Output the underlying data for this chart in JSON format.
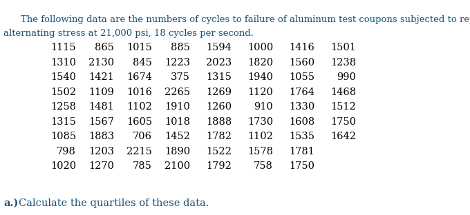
{
  "title_line1": "The following data are the numbers of cycles to failure of aluminum test coupons subjected to repeated",
  "title_line2": "alternating stress at 21,000 psi, 18 cycles per second.",
  "title_color": "#1a5276",
  "title_fontsize": 9.5,
  "data_rows": [
    [
      1115,
      865,
      1015,
      885,
      1594,
      1000,
      1416,
      1501
    ],
    [
      1310,
      2130,
      845,
      1223,
      2023,
      1820,
      1560,
      1238
    ],
    [
      1540,
      1421,
      1674,
      375,
      1315,
      1940,
      1055,
      990
    ],
    [
      1502,
      1109,
      1016,
      2265,
      1269,
      1120,
      1764,
      1468
    ],
    [
      1258,
      1481,
      1102,
      1910,
      1260,
      910,
      1330,
      1512
    ],
    [
      1315,
      1567,
      1605,
      1018,
      1888,
      1730,
      1608,
      1750
    ],
    [
      1085,
      1883,
      706,
      1452,
      1782,
      1102,
      1535,
      1642
    ],
    [
      798,
      1203,
      2215,
      1890,
      1522,
      1578,
      1781,
      null
    ],
    [
      1020,
      1270,
      785,
      2100,
      1792,
      758,
      1750,
      null
    ]
  ],
  "data_color": "#000000",
  "data_fontsize": 10.5,
  "footer_bold": "a.)",
  "footer_text": "Calculate the quartiles of these data.",
  "footer_color": "#1a5276",
  "footer_fontsize": 10.5,
  "bg_color": "#ffffff",
  "fig_width": 6.8,
  "fig_height": 3.12,
  "dpi": 100
}
